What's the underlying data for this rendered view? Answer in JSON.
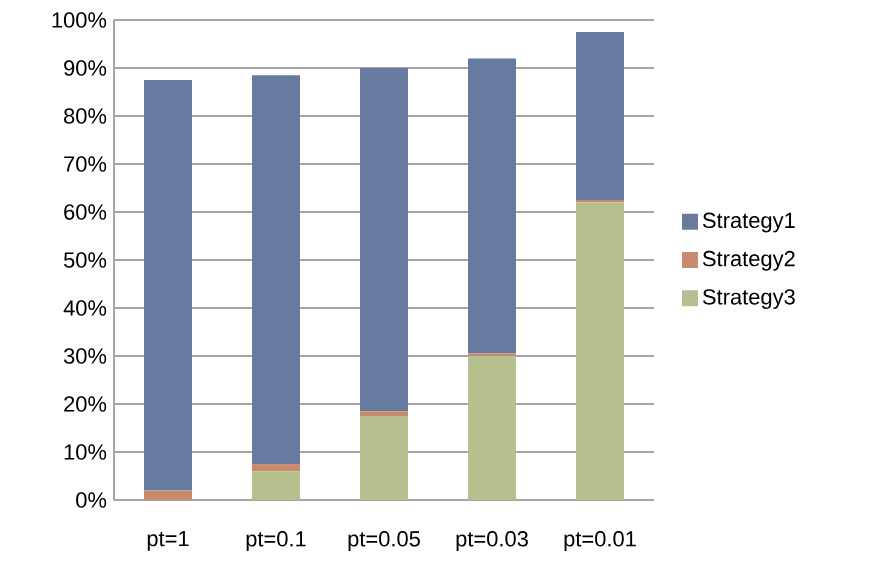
{
  "chart_data": {
    "type": "bar",
    "stacked": true,
    "categories": [
      "pt=1",
      "pt=0.1",
      "pt=0.05",
      "pt=0.03",
      "pt=0.01"
    ],
    "series": [
      {
        "name": "Strategy3",
        "color": "#b6c08e",
        "values": [
          null,
          6,
          17.5,
          30,
          62
        ]
      },
      {
        "name": "Strategy2",
        "color": "#c98b6e",
        "values": [
          2,
          1.5,
          1,
          0.5,
          0.5
        ]
      },
      {
        "name": "Strategy1",
        "color": "#677aa0",
        "values": [
          85.5,
          81,
          71.5,
          61.5,
          35
        ]
      }
    ],
    "ylim": [
      0,
      100
    ],
    "yticks": [
      {
        "value": 0,
        "label": "0%"
      },
      {
        "value": 10,
        "label": "10%"
      },
      {
        "value": 20,
        "label": "20%"
      },
      {
        "value": 30,
        "label": "30%"
      },
      {
        "value": 40,
        "label": "40%"
      },
      {
        "value": 50,
        "label": "50%"
      },
      {
        "value": 60,
        "label": "60%"
      },
      {
        "value": 70,
        "label": "70%"
      },
      {
        "value": 80,
        "label": "80%"
      },
      {
        "value": 90,
        "label": "90%"
      },
      {
        "value": 100,
        "label": "100%"
      }
    ],
    "grid": "y",
    "legend": "right"
  }
}
